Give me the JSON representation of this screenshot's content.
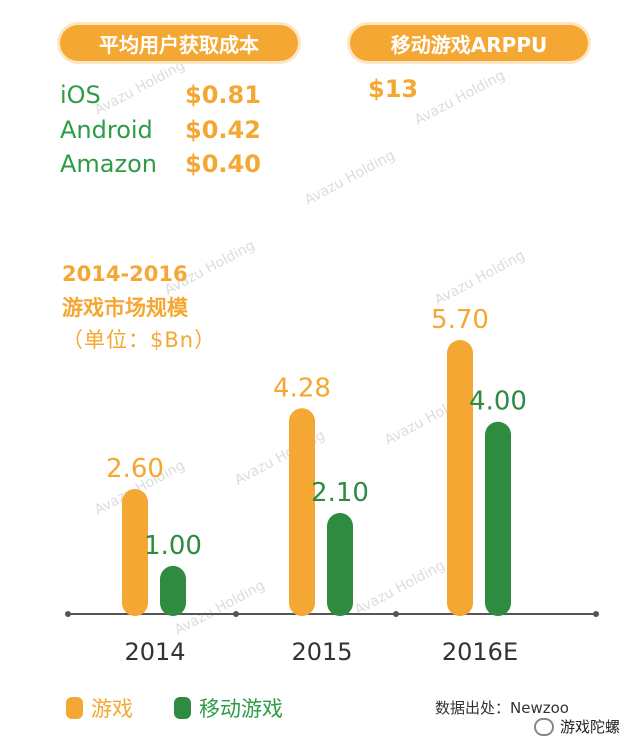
{
  "header": {
    "cac_label": "平均用户获取成本",
    "arppu_label": "移动游戏ARPPU"
  },
  "cac": [
    {
      "platform": "iOS",
      "value": "$0.81"
    },
    {
      "platform": "Android",
      "value": "$0.42"
    },
    {
      "platform": "Amazon",
      "value": "$0.40"
    }
  ],
  "arppu_value": "$13",
  "chart_heading": {
    "line1": "2014-2016",
    "line2": "游戏市场规模",
    "unit": "（单位：$Bn）"
  },
  "chart_data": {
    "type": "bar",
    "title": "2014-2016 游戏市场规模",
    "ylabel": "（单位：$Bn）",
    "categories": [
      "2014",
      "2015",
      "2016E"
    ],
    "series": [
      {
        "name": "游戏",
        "values": [
          2.6,
          4.28,
          5.7
        ],
        "labels": [
          "2.60",
          "4.28",
          "5.70"
        ],
        "color": "#f5a733"
      },
      {
        "name": "移动游戏",
        "values": [
          1.0,
          2.1,
          4.0
        ],
        "labels": [
          "1.00",
          "2.10",
          "4.00"
        ],
        "color": "#2e8b3f"
      }
    ],
    "ylim": [
      0,
      5.7
    ],
    "legend": "bottom-left",
    "grid": false
  },
  "legend": {
    "games": "游戏",
    "mobile": "移动游戏"
  },
  "source": "数据出处：Newzoo",
  "account": "游戏陀螺",
  "watermark_text": "Avazu Holding",
  "colors": {
    "orange": "#f5a733",
    "green": "#2e8b3f",
    "green_text": "#2e9b47"
  }
}
